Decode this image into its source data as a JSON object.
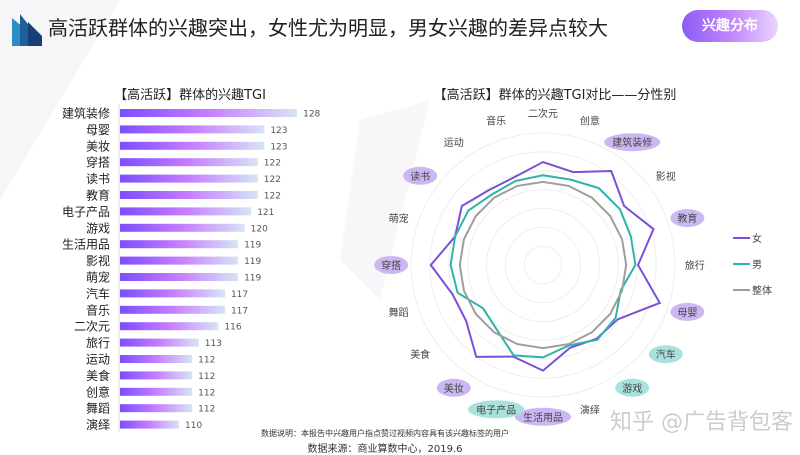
{
  "header": {
    "title": "高活跃群体的兴趣突出，女性尤为明显，男女兴趣的差异点较大",
    "badge": "兴趣分布"
  },
  "footer": {
    "note": "数据说明：本报告中兴趣用户指点赞过视频内容具有该兴趣标签的用户",
    "source": "数据来源：商业算数中心，2019.6"
  },
  "watermark": "知乎 @广告背包客",
  "colors": {
    "female": "#7b4fd6",
    "male": "#2fb3a8",
    "overall": "#9e9e9e",
    "bar_start": "#7c4dff",
    "bar_mid": "#c77dff",
    "bar_end": "#d6e4f5",
    "tag_purple": "#cbb8f2",
    "tag_teal": "#a9e2dc"
  },
  "chart_data": [
    {
      "type": "bar",
      "orientation": "horizontal",
      "title": "【高活跃】群体的兴趣TGI",
      "categories": [
        "建筑装修",
        "母婴",
        "美妆",
        "穿搭",
        "读书",
        "教育",
        "电子产品",
        "游戏",
        "生活用品",
        "影视",
        "萌宠",
        "汽车",
        "音乐",
        "二次元",
        "旅行",
        "运动",
        "美食",
        "创意",
        "舞蹈",
        "演绎"
      ],
      "values": [
        128,
        123,
        123,
        122,
        122,
        122,
        121,
        120,
        119,
        119,
        119,
        117,
        117,
        116,
        113,
        112,
        112,
        112,
        112,
        110
      ]
    },
    {
      "type": "radar",
      "title": "【高活跃】群体的兴趣TGI对比——分性别",
      "axes": [
        "二次元",
        "创意",
        "建筑装修",
        "影视",
        "教育",
        "旅行",
        "母婴",
        "汽车",
        "游戏",
        "演绎",
        "生活用品",
        "电子产品",
        "美妆",
        "美食",
        "舞蹈",
        "穿搭",
        "萌宠",
        "读书",
        "运动",
        "音乐"
      ],
      "highlight": {
        "建筑装修": "purple",
        "教育": "purple",
        "母婴": "purple",
        "生活用品": "purple",
        "美妆": "purple",
        "穿搭": "purple",
        "读书": "purple",
        "汽车": "teal",
        "游戏": "teal",
        "电子产品": "teal"
      },
      "scale_note": "relative radius 0-1 (no axis values shown)",
      "rings": 7,
      "series": [
        {
          "name": "女",
          "values": [
            0.78,
            0.74,
            0.88,
            0.76,
            0.88,
            0.72,
            0.93,
            0.7,
            0.69,
            0.66,
            0.8,
            0.73,
            0.86,
            0.72,
            0.72,
            0.85,
            0.7,
            0.76,
            0.7,
            0.7
          ]
        },
        {
          "name": "男",
          "values": [
            0.68,
            0.68,
            0.72,
            0.72,
            0.7,
            0.7,
            0.62,
            0.68,
            0.7,
            0.64,
            0.7,
            0.72,
            0.6,
            0.56,
            0.68,
            0.7,
            0.7,
            0.7,
            0.66,
            0.67
          ]
        },
        {
          "name": "整体",
          "values": [
            0.63,
            0.63,
            0.63,
            0.63,
            0.63,
            0.63,
            0.63,
            0.63,
            0.63,
            0.63,
            0.63,
            0.63,
            0.63,
            0.63,
            0.63,
            0.63,
            0.63,
            0.63,
            0.63,
            0.63
          ]
        }
      ],
      "legend": "right"
    }
  ]
}
